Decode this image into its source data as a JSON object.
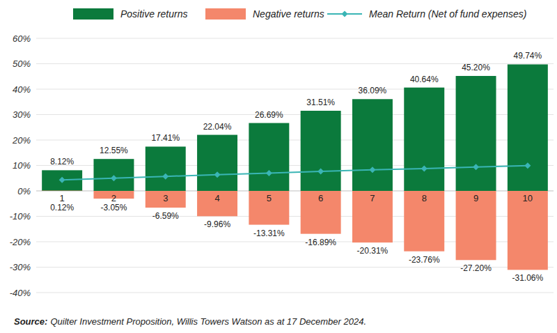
{
  "chart_data": {
    "type": "bar",
    "categories": [
      "1",
      "2",
      "3",
      "4",
      "5",
      "6",
      "7",
      "8",
      "9",
      "10"
    ],
    "series": [
      {
        "name": "Positive returns",
        "type": "bar",
        "color": "#0b7a3c",
        "data_labels": true,
        "values": [
          8.12,
          12.55,
          17.41,
          22.04,
          26.69,
          31.51,
          36.09,
          40.64,
          45.2,
          49.74
        ],
        "value_labels": [
          "8.12%",
          "12.55%",
          "17.41%",
          "22.04%",
          "26.69%",
          "31.51%",
          "36.09%",
          "40.64%",
          "45.20%",
          "49.74%"
        ]
      },
      {
        "name": "Negative returns",
        "type": "bar",
        "color": "#f4876b",
        "data_labels": true,
        "values": [
          0.12,
          -3.05,
          -6.59,
          -9.96,
          -13.31,
          -16.89,
          -20.31,
          -23.76,
          -27.2,
          -31.06
        ],
        "value_labels": [
          "0.12%",
          "-3.05%",
          "-6.59%",
          "-9.96%",
          "-13.31%",
          "-16.89%",
          "-20.31%",
          "-23.76%",
          "-27.20%",
          "-31.06%"
        ]
      },
      {
        "name": "Mean Return (Net of fund expenses)",
        "type": "line",
        "color": "#3ab5b5",
        "marker": "diamond",
        "line_style": "solid",
        "data_labels": false,
        "values": [
          4.3,
          5.0,
          5.7,
          6.4,
          7.0,
          7.7,
          8.3,
          8.8,
          9.4,
          9.9
        ]
      }
    ],
    "ylim": [
      -40,
      60
    ],
    "yticks": [
      {
        "value": -40,
        "label": "-40%"
      },
      {
        "value": -30,
        "label": "-30%"
      },
      {
        "value": -20,
        "label": "-20%"
      },
      {
        "value": -10,
        "label": "-10%"
      },
      {
        "value": 0,
        "label": "0%"
      },
      {
        "value": 10,
        "label": "10%"
      },
      {
        "value": 20,
        "label": "20%"
      },
      {
        "value": 30,
        "label": "30%"
      },
      {
        "value": 40,
        "label": "40%"
      },
      {
        "value": 50,
        "label": "50%"
      },
      {
        "value": 60,
        "label": "60%"
      }
    ],
    "grid": true,
    "legend": "top",
    "source_label": "Source:",
    "source": "Quilter Investment Proposition, Willis Towers Watson as at 17 December 2024."
  }
}
